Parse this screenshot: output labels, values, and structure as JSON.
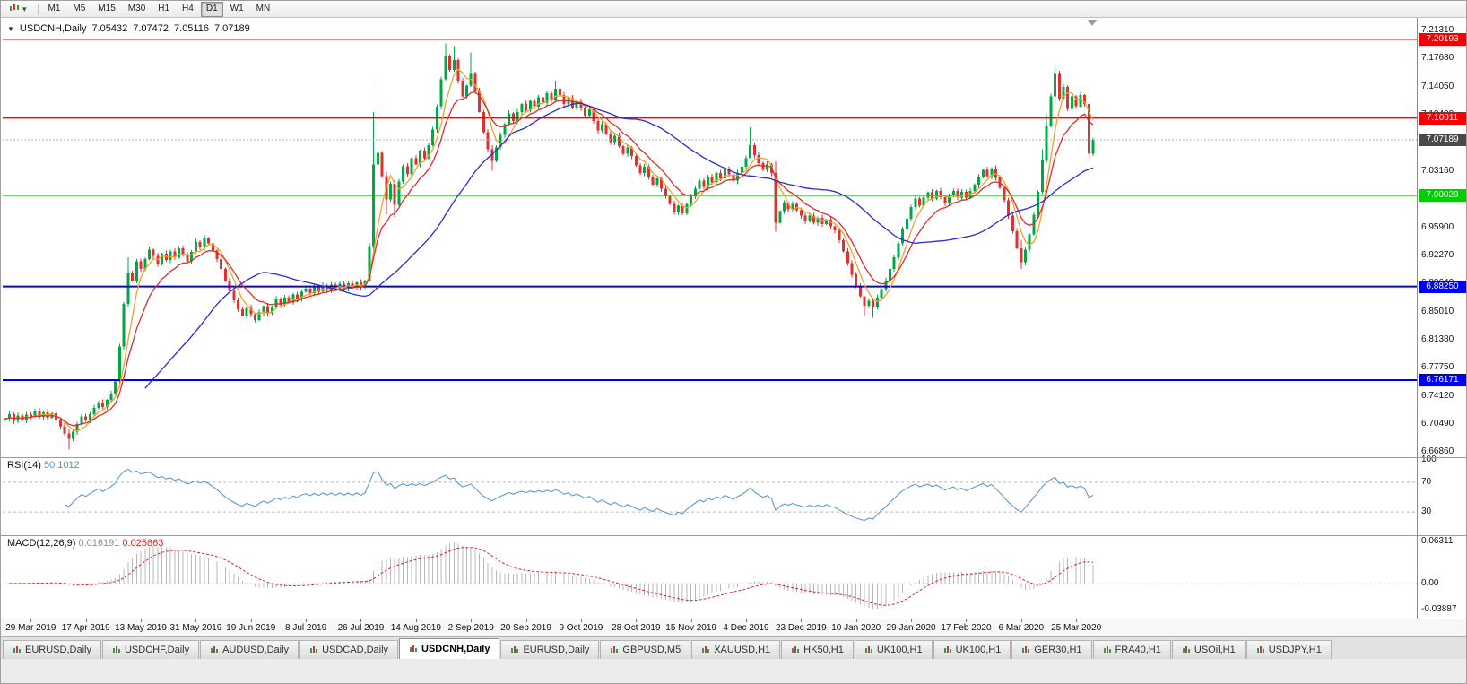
{
  "icons": {
    "chart_menu_arrow": "▼",
    "dropdown_caret": "▾"
  },
  "toolbar": {
    "chart_type_button": "chart-type",
    "timeframes": [
      {
        "label": "M1",
        "active": false
      },
      {
        "label": "M5",
        "active": false
      },
      {
        "label": "M15",
        "active": false
      },
      {
        "label": "M30",
        "active": false
      },
      {
        "label": "H1",
        "active": false
      },
      {
        "label": "H4",
        "active": false
      },
      {
        "label": "D1",
        "active": true
      },
      {
        "label": "W1",
        "active": false
      },
      {
        "label": "MN",
        "active": false
      }
    ]
  },
  "chart": {
    "title": {
      "symbol_period": "USDCNH,Daily",
      "open": "7.05432",
      "high": "7.07472",
      "low": "7.05116",
      "close": "7.07189"
    },
    "colors": {
      "bull": "#00a843",
      "bear": "#e03030",
      "ma_fast": "#eda228",
      "ma_mid": "#dd2c2c",
      "ma_slow": "#2b2bd0",
      "level_red": "#f00404",
      "level_green": "#00ce00",
      "level_blue": "#0000f0",
      "current_badge": "#4a4a4a",
      "rsi": "#5b9bd5",
      "macd_hist": "#b8b8b8",
      "macd_signal": "#d22a2a"
    }
  },
  "rsi_panel": {
    "label": "RSI(14)",
    "value": "50.1012",
    "axis": [
      "100",
      "70",
      "30"
    ],
    "level_lines": [
      70,
      30
    ]
  },
  "macd_panel": {
    "label": "MACD(12,26,9)",
    "value": "0.016191",
    "signal_value": "0.025863",
    "axis": [
      "0.06311",
      "0.00",
      "-0.03887"
    ]
  },
  "chart_data": {
    "type": "candlestick",
    "symbol": "USDCNH",
    "period": "Daily",
    "y_range": [
      6.6686,
      7.2131
    ],
    "price_axis_labels": [
      "7.21310",
      "7.17680",
      "7.14050",
      "7.10420",
      "7.06790",
      "7.03160",
      "6.99530",
      "6.95900",
      "6.92270",
      "6.88640",
      "6.85010",
      "6.81380",
      "6.77750",
      "6.74120",
      "6.70490",
      "6.66860"
    ],
    "levels": [
      {
        "price": 7.20193,
        "label": "7.20193",
        "color": "#f00404",
        "kind": "horizontal-line"
      },
      {
        "price": 7.10011,
        "label": "7.10011",
        "color": "#f00404",
        "kind": "horizontal-line"
      },
      {
        "price": 7.07189,
        "label": "7.07189",
        "color": "#4a4a4a",
        "kind": "current-price"
      },
      {
        "price": 7.00029,
        "label": "7.00029",
        "color": "#00ce00",
        "kind": "horizontal-line"
      },
      {
        "price": 6.8825,
        "label": "6.88250",
        "color": "#0000f0",
        "kind": "horizontal-line"
      },
      {
        "price": 6.76171,
        "label": "6.76171",
        "color": "#0000f0",
        "kind": "horizontal-line"
      }
    ],
    "overlays": [
      {
        "name": "SMA5",
        "period": 5,
        "type": "sma",
        "color_key": "ma_fast"
      },
      {
        "name": "EMA10",
        "period": 10,
        "type": "ema",
        "color_key": "ma_mid"
      },
      {
        "name": "SMA34",
        "period": 34,
        "type": "sma",
        "color_key": "ma_slow"
      }
    ],
    "x_labels": [
      "29 Mar 2019",
      "17 Apr 2019",
      "13 May 2019",
      "31 May 2019",
      "19 Jun 2019",
      "8 Jul 2019",
      "26 Jul 2019",
      "14 Aug 2019",
      "2 Sep 2019",
      "20 Sep 2019",
      "9 Oct 2019",
      "28 Oct 2019",
      "15 Nov 2019",
      "4 Dec 2019",
      "23 Dec 2019",
      "10 Jan 2020",
      "29 Jan 2020",
      "17 Feb 2020",
      "6 Mar 2020",
      "25 Mar 2020"
    ],
    "label_indices": [
      6,
      19,
      32,
      45,
      58,
      71,
      84,
      97,
      110,
      123,
      136,
      149,
      162,
      175,
      188,
      201,
      214,
      227,
      240,
      253
    ],
    "first_open": 6.71,
    "closes": [
      6.712,
      6.718,
      6.709,
      6.716,
      6.71,
      6.717,
      6.715,
      6.722,
      6.714,
      6.72,
      6.713,
      6.719,
      6.71,
      6.702,
      6.693,
      6.686,
      6.695,
      6.705,
      6.715,
      6.71,
      6.718,
      6.726,
      6.733,
      6.727,
      6.736,
      6.744,
      6.76,
      6.805,
      6.86,
      6.9,
      6.89,
      6.915,
      6.905,
      6.918,
      6.93,
      6.922,
      6.912,
      6.925,
      6.917,
      6.928,
      6.92,
      6.932,
      6.924,
      6.915,
      6.927,
      6.94,
      6.933,
      6.945,
      6.938,
      6.929,
      6.918,
      6.905,
      6.89,
      6.877,
      6.865,
      6.853,
      6.845,
      6.855,
      6.847,
      6.839,
      6.849,
      6.857,
      6.848,
      6.856,
      6.866,
      6.859,
      6.868,
      6.862,
      6.872,
      6.866,
      6.876,
      6.88,
      6.874,
      6.882,
      6.876,
      6.884,
      6.878,
      6.885,
      6.879,
      6.886,
      6.88,
      6.887,
      6.881,
      6.888,
      6.882,
      6.89,
      6.935,
      7.04,
      7.055,
      7.025,
      6.995,
      7.015,
      6.988,
      7.018,
      7.038,
      7.028,
      7.048,
      7.04,
      7.058,
      7.048,
      7.065,
      7.085,
      7.115,
      7.15,
      7.18,
      7.162,
      7.175,
      7.148,
      7.128,
      7.142,
      7.158,
      7.135,
      7.108,
      7.082,
      7.06,
      7.045,
      7.062,
      7.078,
      7.092,
      7.106,
      7.096,
      7.108,
      7.118,
      7.11,
      7.122,
      7.115,
      7.127,
      7.12,
      7.132,
      7.124,
      7.138,
      7.13,
      7.118,
      7.126,
      7.113,
      7.121,
      7.113,
      7.103,
      7.111,
      7.096,
      7.084,
      7.092,
      7.079,
      7.069,
      7.077,
      7.064,
      7.054,
      7.062,
      7.051,
      7.039,
      7.029,
      7.037,
      7.024,
      7.014,
      7.022,
      7.009,
      6.999,
      6.989,
      6.979,
      6.987,
      6.977,
      6.989,
      6.999,
      7.009,
      7.019,
      7.011,
      7.024,
      7.017,
      7.029,
      7.022,
      7.034,
      7.027,
      7.019,
      7.029,
      7.037,
      7.048,
      7.065,
      7.052,
      7.042,
      7.033,
      7.04,
      7.029,
      6.965,
      6.98,
      6.99,
      6.982,
      6.989,
      6.981,
      6.974,
      6.967,
      6.974,
      6.965,
      6.971,
      6.963,
      6.969,
      6.96,
      6.955,
      6.942,
      6.928,
      6.913,
      6.898,
      6.883,
      6.87,
      6.858,
      6.864,
      6.856,
      6.868,
      6.879,
      6.89,
      6.905,
      6.92,
      6.938,
      6.956,
      6.97,
      6.985,
      6.996,
      6.987,
      6.997,
      7.004,
      6.996,
      7.006,
      6.998,
      6.99,
      6.999,
      7.006,
      6.997,
      7.005,
      6.997,
      7.006,
      7.014,
      7.024,
      7.033,
      7.025,
      7.035,
      7.023,
      7.01,
      6.994,
      6.974,
      6.954,
      6.932,
      6.914,
      6.93,
      6.95,
      6.975,
      7.005,
      7.045,
      7.09,
      7.128,
      7.158,
      7.125,
      7.14,
      7.112,
      7.128,
      7.115,
      7.13,
      7.118,
      7.054,
      7.0719
    ],
    "wick_overrides": {
      "15": [
        6.698,
        6.672
      ],
      "29": [
        6.92,
        6.856
      ],
      "87": [
        7.108,
        6.93
      ],
      "88": [
        7.143,
        7.03
      ],
      "90": [
        7.03,
        6.976
      ],
      "92": [
        7.02,
        6.972
      ],
      "104": [
        7.1965,
        7.148
      ],
      "106": [
        7.193,
        7.16
      ],
      "110": [
        7.185,
        7.14
      ],
      "115": [
        7.065,
        7.032
      ],
      "130": [
        7.148,
        7.12
      ],
      "176": [
        7.088,
        7.048
      ],
      "182": [
        7.044,
        6.953
      ],
      "203": [
        6.87,
        6.845
      ],
      "205": [
        6.868,
        6.842
      ],
      "240": [
        6.942,
        6.9055
      ],
      "245": [
        7.06,
        7.002
      ],
      "246": [
        7.105,
        7.042
      ],
      "248": [
        7.168,
        7.12
      ],
      "256": [
        7.12,
        7.048
      ],
      "257": [
        7.0747,
        7.0512
      ]
    },
    "indicators": [
      {
        "name": "RSI",
        "params": "14",
        "current_value": "50.1012"
      },
      {
        "name": "MACD",
        "params": "12,26,9",
        "current_value": "0.016191",
        "signal_value": "0.025863"
      }
    ]
  },
  "tabbar": {
    "tabs": [
      {
        "label": "EURUSD,Daily",
        "active": false
      },
      {
        "label": "USDCHF,Daily",
        "active": false
      },
      {
        "label": "AUDUSD,Daily",
        "active": false
      },
      {
        "label": "USDCAD,Daily",
        "active": false
      },
      {
        "label": "USDCNH,Daily",
        "active": true
      },
      {
        "label": "EURUSD,Daily",
        "active": false
      },
      {
        "label": "GBPUSD,M5",
        "active": false
      },
      {
        "label": "XAUUSD,H1",
        "active": false
      },
      {
        "label": "HK50,H1",
        "active": false
      },
      {
        "label": "UK100,H1",
        "active": false
      },
      {
        "label": "UK100,H1",
        "active": false
      },
      {
        "label": "GER30,H1",
        "active": false
      },
      {
        "label": "FRA40,H1",
        "active": false
      },
      {
        "label": "USOil,H1",
        "active": false
      },
      {
        "label": "USDJPY,H1",
        "active": false
      }
    ]
  }
}
